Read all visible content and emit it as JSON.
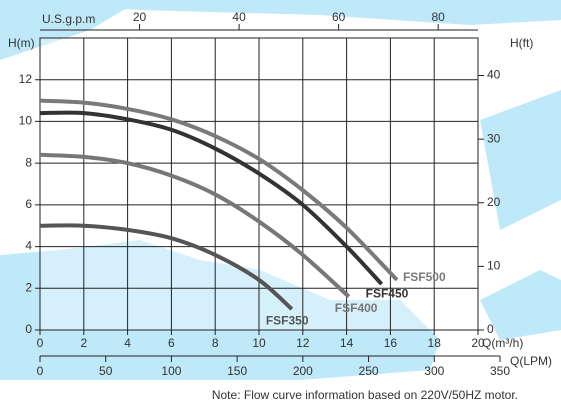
{
  "chart_data": {
    "type": "line",
    "xlabel": "Q(m³/h)",
    "ylabel": "H(m)",
    "y2label": "H(ft)",
    "xlim": [
      0,
      20
    ],
    "xticks": [
      0,
      2,
      4,
      6,
      8,
      10,
      12,
      14,
      16,
      18,
      20
    ],
    "ylim": [
      0,
      14
    ],
    "yticks": [
      0,
      2,
      4,
      6,
      8,
      10,
      12
    ],
    "y2lim": [
      0,
      45.9
    ],
    "y2ticks": [
      0,
      10,
      20,
      30,
      40
    ],
    "x_top": {
      "label": "U.S.g.p.m",
      "lim": [
        0,
        88
      ],
      "ticks": [
        20,
        40,
        60,
        80
      ]
    },
    "x_bottom2": {
      "label": "Q(LPM)",
      "lim": [
        0,
        350
      ],
      "ticks": [
        0,
        50,
        100,
        150,
        200,
        250,
        300,
        350
      ]
    },
    "grid": true,
    "note": "Note: Flow curve information based on 220V/50HZ motor.",
    "series": [
      {
        "name": "FSF350",
        "color": "#555555",
        "x": [
          0,
          2,
          4,
          6,
          8,
          10,
          11.5
        ],
        "values": [
          5.0,
          5.0,
          4.8,
          4.4,
          3.6,
          2.4,
          1.0
        ]
      },
      {
        "name": "FSF400",
        "color": "#777777",
        "x": [
          0,
          2,
          4,
          6,
          8,
          10,
          12,
          14.1
        ],
        "values": [
          8.4,
          8.3,
          8.0,
          7.4,
          6.5,
          5.2,
          3.6,
          1.6
        ]
      },
      {
        "name": "FSF450",
        "color": "#333333",
        "x": [
          0,
          2,
          4,
          6,
          8,
          10,
          12,
          14,
          15.6
        ],
        "values": [
          10.4,
          10.4,
          10.1,
          9.6,
          8.7,
          7.5,
          6.0,
          4.0,
          2.2
        ]
      },
      {
        "name": "FSF500",
        "color": "#7a7a7a",
        "x": [
          0,
          2,
          4,
          6,
          8,
          10,
          12,
          14,
          16.3
        ],
        "values": [
          11.0,
          10.9,
          10.6,
          10.1,
          9.3,
          8.2,
          6.7,
          4.9,
          2.4
        ]
      }
    ]
  }
}
